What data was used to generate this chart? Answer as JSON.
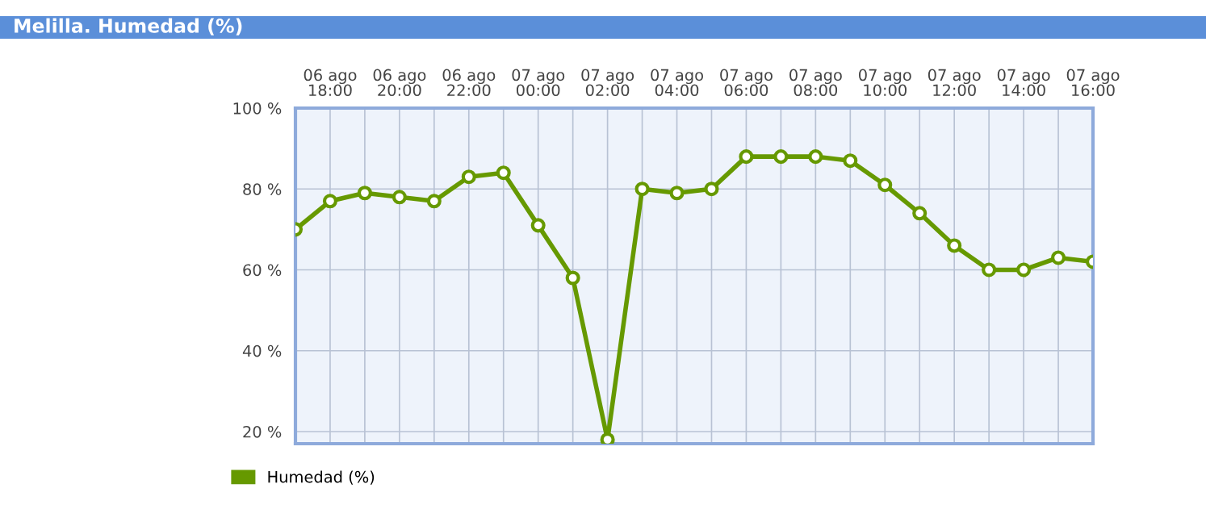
{
  "chart_data": {
    "type": "line",
    "title": "Melilla. Humedad (%)",
    "categories": [
      null,
      "06 ago\n18:00",
      null,
      "06 ago\n20:00",
      null,
      "06 ago\n22:00",
      null,
      "07 ago\n00:00",
      null,
      "07 ago\n02:00",
      null,
      "07 ago\n04:00",
      null,
      "07 ago\n06:00",
      null,
      "07 ago\n08:00",
      null,
      "07 ago\n10:00",
      null,
      "07 ago\n12:00",
      null,
      "07 ago\n14:00",
      null,
      "07 ago\n16:00"
    ],
    "series": [
      {
        "name": "Humedad (%)",
        "color": "#669900",
        "values": [
          70,
          77,
          79,
          78,
          77,
          83,
          84,
          71,
          58,
          18,
          80,
          79,
          80,
          88,
          88,
          88,
          87,
          81,
          74,
          66,
          60,
          60,
          63,
          62
        ]
      }
    ],
    "ylim": [
      17,
      100
    ],
    "yticks": [
      {
        "value": 20,
        "label": "20 %"
      },
      {
        "value": 40,
        "label": "40 %"
      },
      {
        "value": 60,
        "label": "60 %"
      },
      {
        "value": 80,
        "label": "80 %"
      },
      {
        "value": 100,
        "label": "100 %"
      }
    ],
    "grid": true,
    "legend": "bottom left",
    "marker": "circle",
    "line_style": "solid"
  }
}
